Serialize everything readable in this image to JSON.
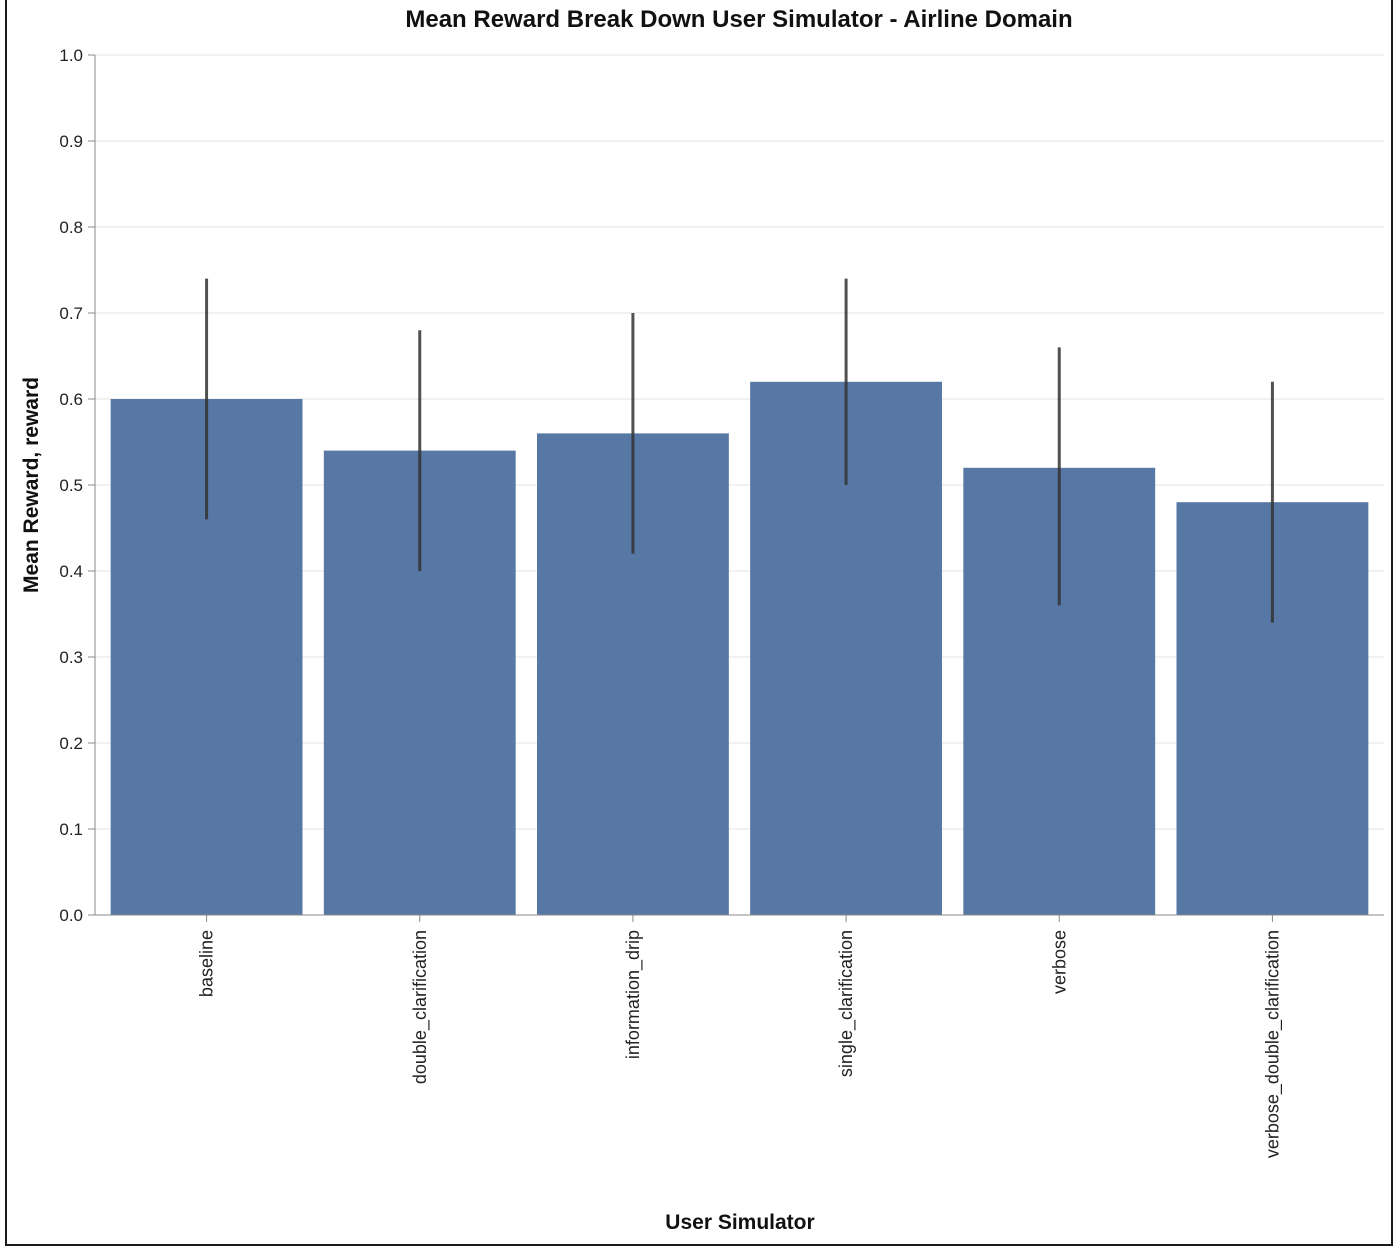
{
  "chart_data": {
    "type": "bar",
    "title": "Mean Reward Break Down User Simulator - Airline Domain",
    "xlabel": "User Simulator",
    "ylabel": "Mean Reward, reward",
    "categories": [
      "baseline",
      "double_clarification",
      "information_drip",
      "single_clarification",
      "verbose",
      "verbose_double_clarification"
    ],
    "values": [
      0.6,
      0.54,
      0.56,
      0.62,
      0.52,
      0.48
    ],
    "error_low": [
      0.46,
      0.4,
      0.42,
      0.5,
      0.36,
      0.34
    ],
    "error_high": [
      0.74,
      0.68,
      0.7,
      0.74,
      0.66,
      0.62
    ],
    "ylim": [
      0,
      1.0
    ],
    "yticks": [
      "0.0",
      "0.1",
      "0.2",
      "0.3",
      "0.4",
      "0.5",
      "0.6",
      "0.7",
      "0.8",
      "0.9",
      "1.0"
    ],
    "grid": true,
    "colors": {
      "bar": "#5778a4",
      "error_bar": "#333333",
      "grid": "#e3e3e3",
      "axis": "#888888"
    }
  }
}
